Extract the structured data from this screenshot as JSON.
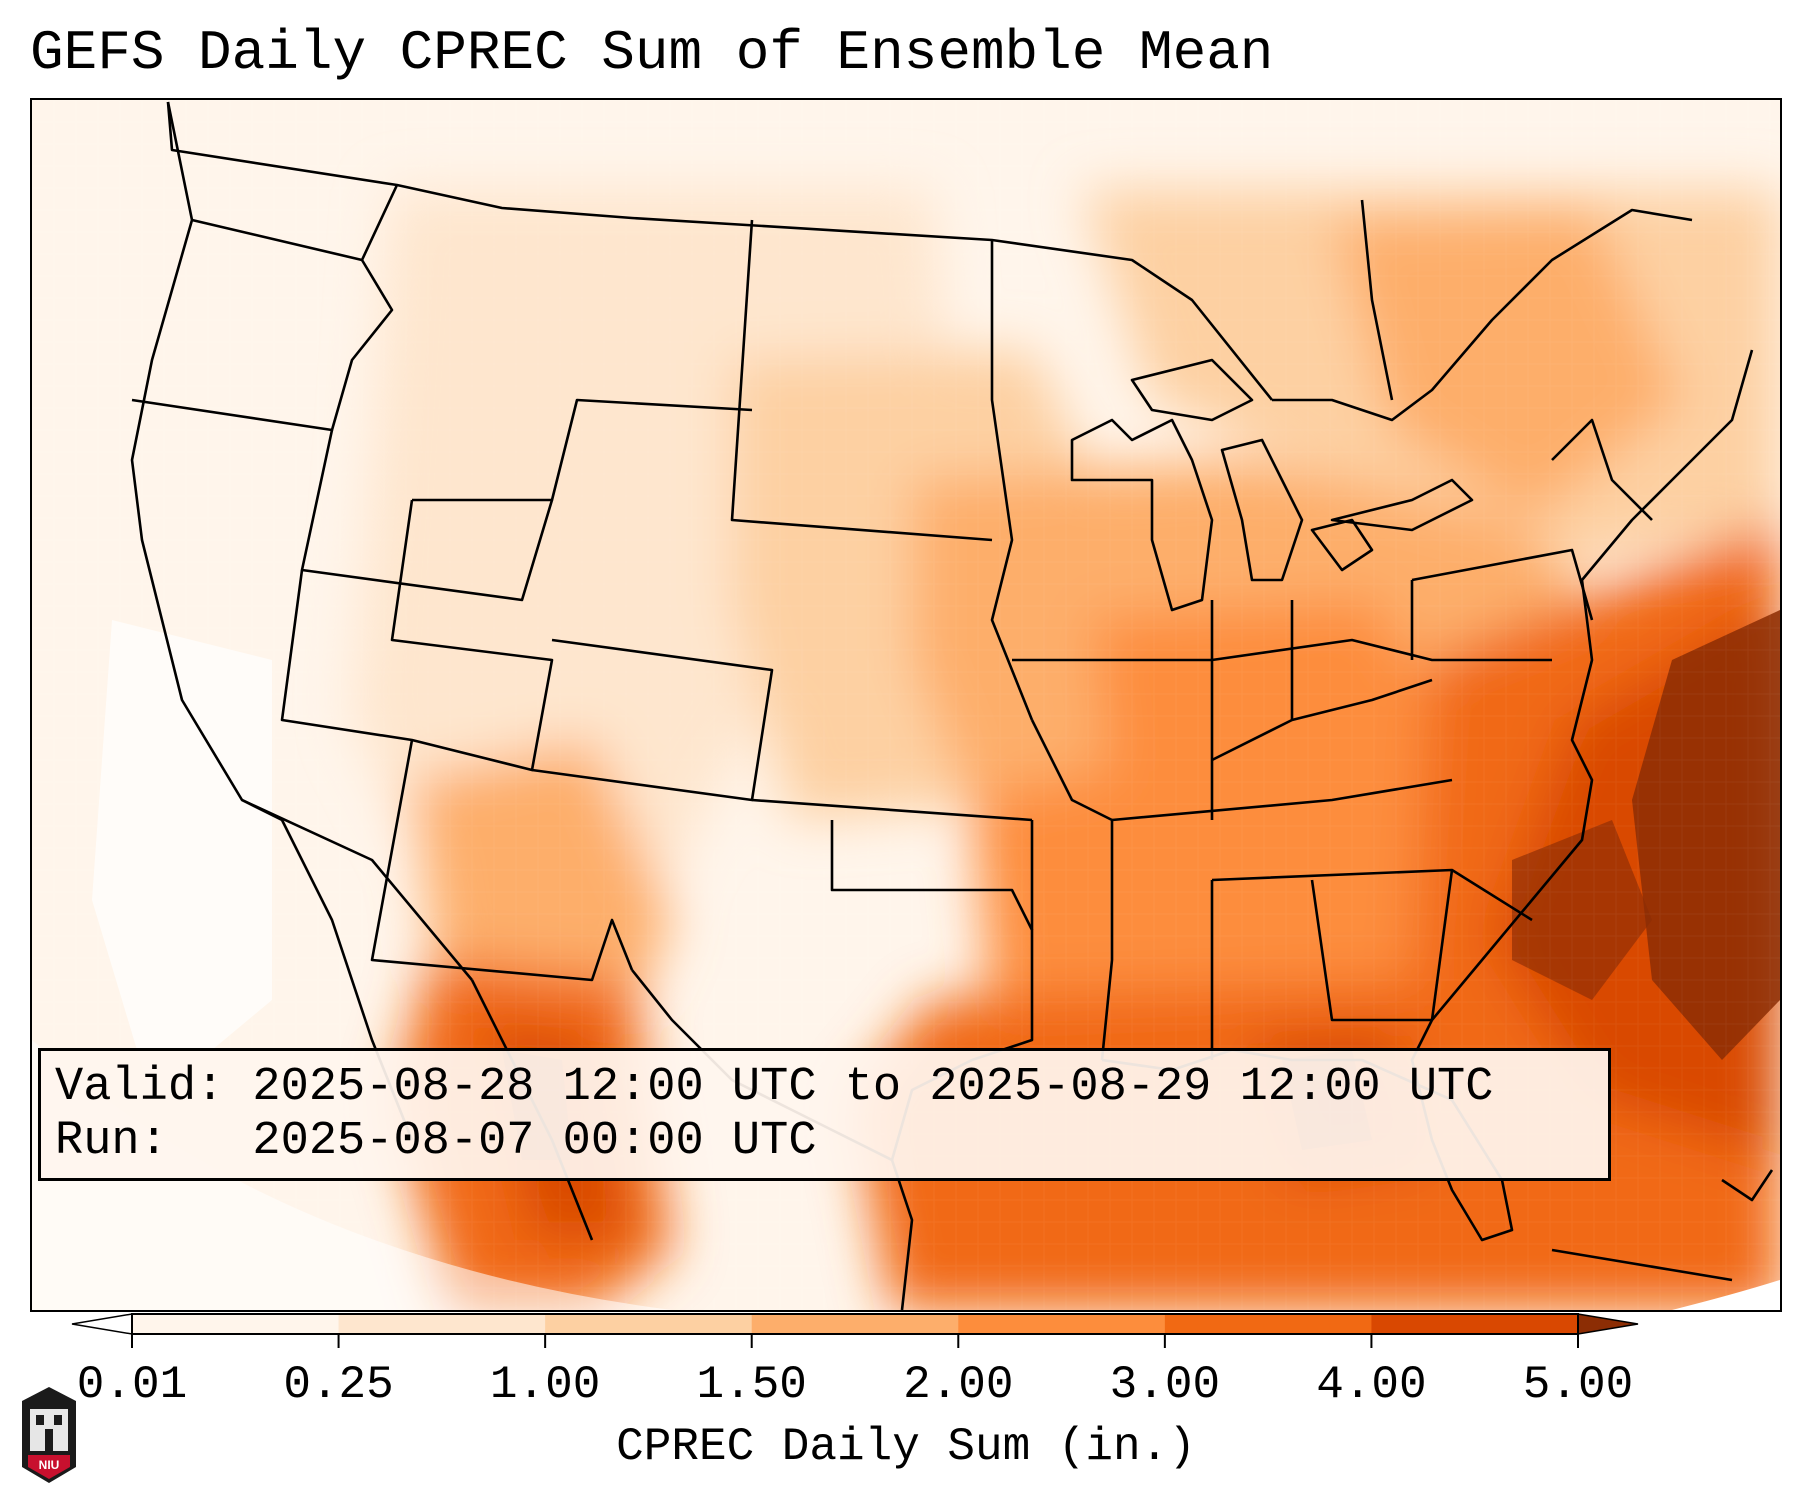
{
  "title": "GEFS Daily CPREC Sum of Ensemble Mean",
  "info": {
    "valid_line": "Valid: 2025-08-28 12:00 UTC to 2025-08-29 12:00 UTC",
    "run_line": "Run:   2025-08-07 00:00 UTC"
  },
  "colorbar": {
    "label": "CPREC Daily Sum (in.)",
    "ticks": [
      "0.01",
      "0.25",
      "1.00",
      "1.50",
      "2.00",
      "3.00",
      "4.00",
      "5.00"
    ],
    "colors": [
      "#fff5eb",
      "#fee6ce",
      "#fdd0a2",
      "#fdae6b",
      "#fd8d3c",
      "#f16913",
      "#d94801",
      "#8c2d04"
    ],
    "extend": "both"
  },
  "logo": {
    "text": "NIU",
    "description": "Northern Illinois University logo"
  },
  "map_data": {
    "region": "Contiguous United States, northern Mexico, Gulf of Mexico and western Atlantic",
    "variable": "Convective precipitation daily sum, ensemble mean",
    "units": "in.",
    "regions": [
      {
        "name": "Pacific Northwest & Great Basin",
        "level": "0.01"
      },
      {
        "name": "California coast",
        "level": "0.01"
      },
      {
        "name": "Northern Plains",
        "level": "0.25"
      },
      {
        "name": "Rockies & Southwest",
        "level": "0.25-1.00"
      },
      {
        "name": "Midwest & Great Lakes",
        "level": "1.50-2.00"
      },
      {
        "name": "Ohio Valley & Southeast",
        "level": "2.00-3.00"
      },
      {
        "name": "Gulf of Mexico",
        "level": "3.00-4.00"
      },
      {
        "name": "Western Atlantic offshore",
        "level": "4.00-5.00"
      },
      {
        "name": "Sierra Madre Occidental, Mexico",
        "level": "3.00-5.00"
      }
    ]
  }
}
